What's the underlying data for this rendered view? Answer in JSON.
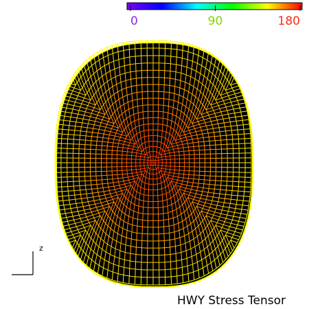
{
  "colorbar": {
    "lim": [
      0,
      180
    ],
    "ticks": [
      0,
      90,
      180
    ],
    "tick_colors": [
      "#8a2be2",
      "#7fd400",
      "#ff2a1a"
    ],
    "colors": [
      "#8000ff",
      "#0000ff",
      "#00ffff",
      "#00ff00",
      "#ffff00",
      "#ff0000"
    ]
  },
  "axis_label": "z",
  "caption": "HWY Stress Tensor"
}
